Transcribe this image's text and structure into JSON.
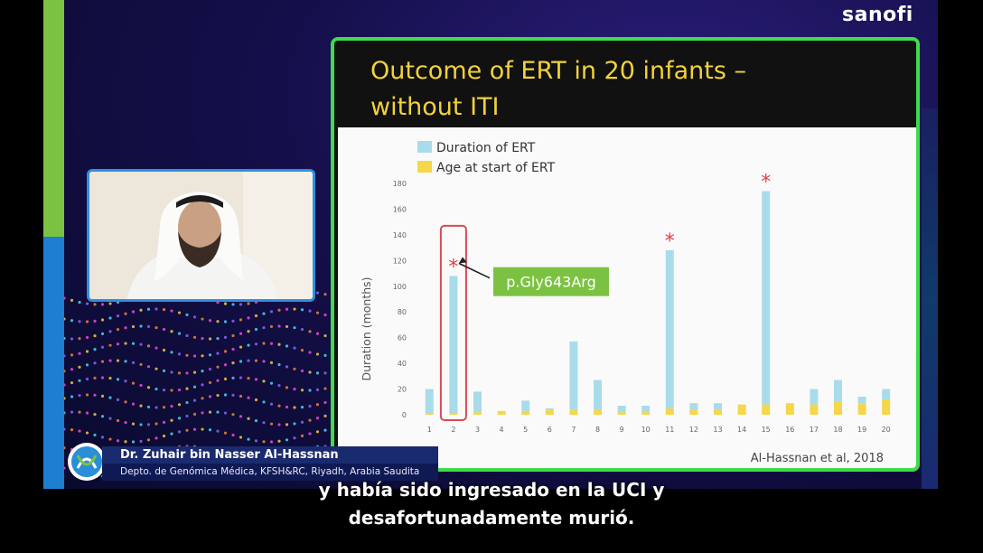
{
  "brand": {
    "logo_text": "sanofi"
  },
  "slide": {
    "title": "Outcome of ERT in 20 infants –\nwithout ITI",
    "citation": "Al-Hassnan et al, 2018",
    "callout": "p.Gly643Arg",
    "colors": {
      "border": "#3ddc4a",
      "title": "#f2d23a",
      "duration": "#a8dcea",
      "age": "#f6d64a",
      "marker": "#e0404a"
    }
  },
  "chart_data": {
    "type": "bar",
    "stacked": true,
    "ylabel": "Duration (months)",
    "xlabel": "",
    "ylim": [
      0,
      180
    ],
    "yticks": [
      0,
      20,
      40,
      60,
      80,
      100,
      120,
      140,
      160,
      180
    ],
    "categories": [
      "1",
      "2",
      "3",
      "4",
      "5",
      "6",
      "7",
      "8",
      "9",
      "10",
      "11",
      "12",
      "13",
      "14",
      "15",
      "16",
      "17",
      "18",
      "19",
      "20"
    ],
    "series": [
      {
        "name": "Age at start of ERT",
        "color": "#f6d64a",
        "values": [
          1,
          1,
          2,
          3,
          3,
          4,
          4,
          4,
          2,
          2,
          5,
          4,
          4,
          8,
          8,
          9,
          8,
          10,
          9,
          12
        ]
      },
      {
        "name": "Duration of ERT",
        "color": "#a8dcea",
        "values": [
          19,
          107,
          16,
          0,
          8,
          1,
          53,
          23,
          5,
          5,
          123,
          5,
          5,
          0,
          166,
          0,
          12,
          17,
          5,
          8
        ]
      }
    ],
    "legend_position": "top-left",
    "marked_categories": [
      "2",
      "11",
      "15"
    ],
    "highlighted_category": "2",
    "grid": false
  },
  "speaker": {
    "name": "Dr. Zuhair bin Nasser Al-Hassnan",
    "role": "Depto. de Genómica Médica, KFSH&RC, Riyadh, Arabia Saudita"
  },
  "subtitles": {
    "line1": "y había sido ingresado en la UCI y",
    "line2": "desafortunadamente murió."
  }
}
